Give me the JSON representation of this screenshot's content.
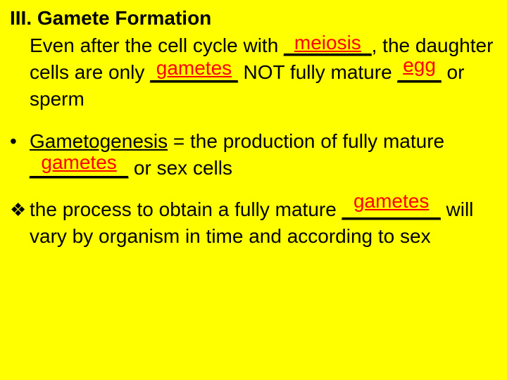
{
  "colors": {
    "background": "#ffff00",
    "text": "#000000",
    "fill": "#ff0000"
  },
  "typography": {
    "font_family": "Arial, sans-serif",
    "base_fontsize": 28,
    "line_height": 1.35,
    "heading_fontweight": "bold"
  },
  "heading": "III. Gamete Formation",
  "para1": {
    "t1": "Even after the cell cycle with ",
    "blank1": "________",
    "fill1": "meiosis",
    "t2": ", the daughter cells are only ",
    "blank2": "________",
    "fill2": "gametes",
    "t3": " NOT fully mature ",
    "blank3": "____",
    "fill3": "egg",
    "t4": " or sperm"
  },
  "bullet1": {
    "mark": "•",
    "term": "Gametogenesis",
    "t1": " = the production of fully mature ",
    "blank1": "_________",
    "fill1": "gametes",
    "t2": " or sex cells"
  },
  "bullet2": {
    "mark": "❖",
    "t1": " the process to obtain a fully mature ",
    "blank1": "_________",
    "fill1": "gametes",
    "t2": " will vary by organism in time and according to sex"
  }
}
